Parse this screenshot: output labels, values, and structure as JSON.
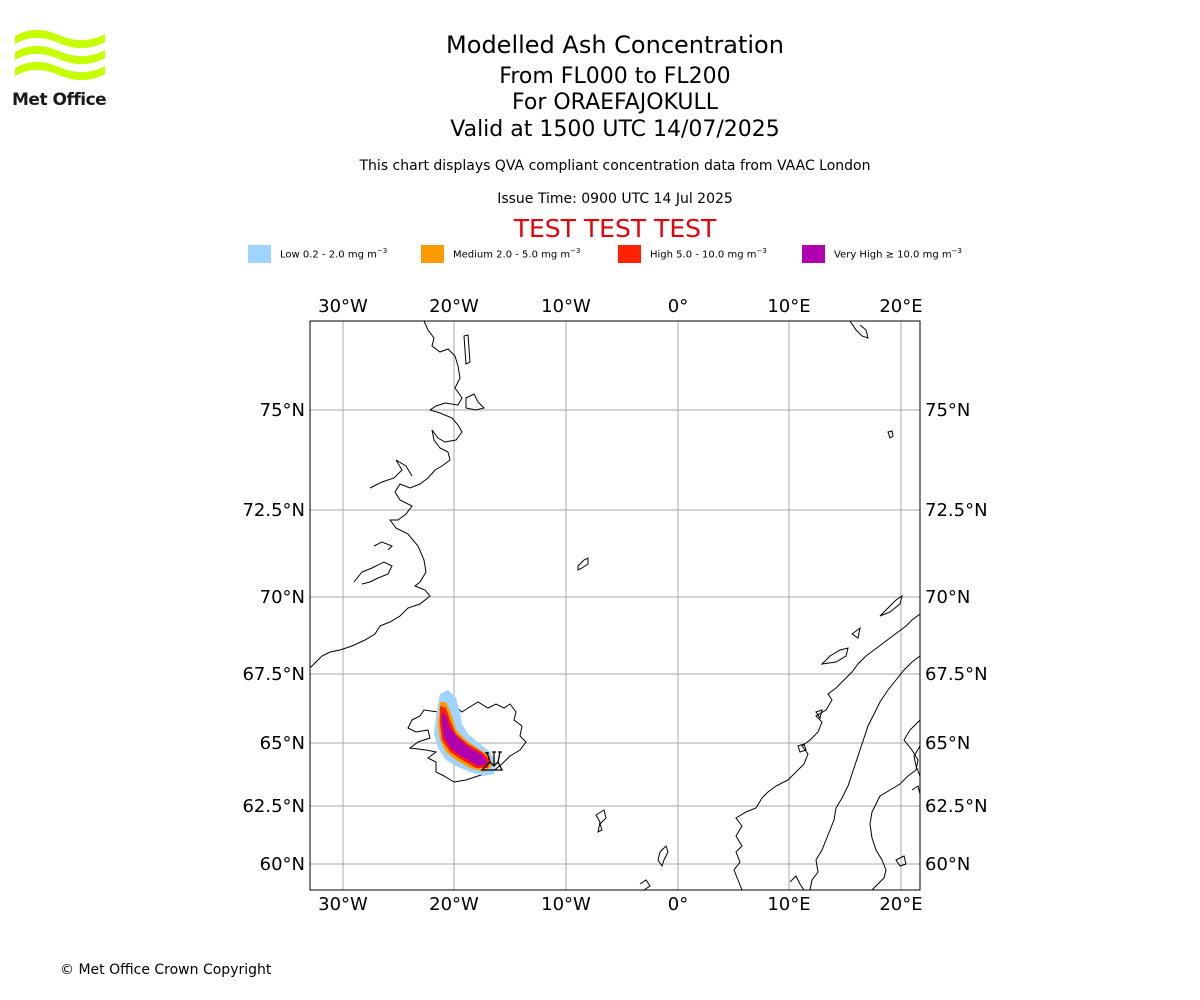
{
  "logo": {
    "text": "Met Office",
    "colors": {
      "wave": "#c6ff00",
      "text": "#1a1a1a"
    }
  },
  "header": {
    "title": "Modelled Ash Concentration",
    "levels": "From FL000 to FL200",
    "volcano": "For ORAEFAJOKULL",
    "valid": "Valid at 1500 UTC 14/07/2025",
    "description": "This chart displays QVA compliant concentration data from VAAC London",
    "issue_time": "Issue Time: 0900 UTC 14 Jul 2025",
    "test_banner": "TEST TEST TEST"
  },
  "legend": [
    {
      "label": "Low 0.2 - 2.0 mg m",
      "exp": "−3",
      "color": "#9fd4ff"
    },
    {
      "label": "Medium 2.0 - 5.0 mg m",
      "exp": "−3",
      "color": "#ff9900"
    },
    {
      "label": "High 5.0 - 10.0 mg m",
      "exp": "−3",
      "color": "#ff2200"
    },
    {
      "label": "Very High  ≥  10.0 mg m",
      "exp": "−3",
      "color": "#b000b0"
    }
  ],
  "map": {
    "lon_labels": [
      "30°W",
      "20°W",
      "10°W",
      "0°",
      "10°E",
      "20°E"
    ],
    "lat_labels": [
      "75°N",
      "72.5°N",
      "70°N",
      "67.5°N",
      "65°N",
      "62.5°N",
      "60°N"
    ],
    "grid_color": "#aaaaaa",
    "volcano_symbol": "volcano-marker"
  },
  "footer": {
    "copyright": "© Met Office Crown Copyright"
  }
}
